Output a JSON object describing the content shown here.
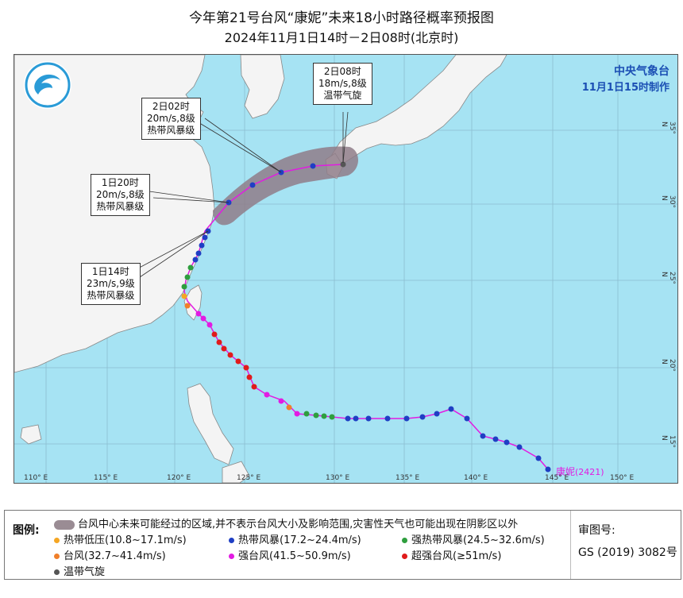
{
  "title": {
    "line1": "今年第21号台风“康妮”未来18小时路径概率预报图",
    "line2": "2024年11月1日14时－2日08时(北京时)"
  },
  "agency": {
    "name": "中央气象台",
    "made": "11月1日15时制作"
  },
  "typhoon": {
    "name": "康妮",
    "code": "(2421)"
  },
  "callouts": [
    {
      "time": "2日08时",
      "wind": "18m/s,8级",
      "type": "温带气旋"
    },
    {
      "time": "2日02时",
      "wind": "20m/s,8级",
      "type": "热带风暴级"
    },
    {
      "time": "1日20时",
      "wind": "20m/s,8级",
      "type": "热带风暴级"
    },
    {
      "time": "1日14时",
      "wind": "23m/s,9级",
      "type": "热带风暴级"
    }
  ],
  "lon_ticks": [
    "110° E",
    "115° E",
    "120° E",
    "125° E",
    "130° E",
    "135° E",
    "140° E",
    "145° E",
    "150° E"
  ],
  "lat_ticks": [
    "35° N",
    "30° N",
    "25° N",
    "20° N",
    "15° N"
  ],
  "legend": {
    "label": "图例:",
    "area": "台风中心未来可能经过的区域,并不表示台风大小及影响范围,灾害性天气也可能出现在阴影区以外",
    "items": [
      {
        "label": "热带低压(10.8~17.1m/s)",
        "color": "#f5a623"
      },
      {
        "label": "热带风暴(17.2~24.4m/s)",
        "color": "#1f3fc4"
      },
      {
        "label": "强热带风暴(24.5~32.6m/s)",
        "color": "#2e9e3e"
      },
      {
        "label": "台风(32.7~41.4m/s)",
        "color": "#f07f2a"
      },
      {
        "label": "强台风(41.5~50.9m/s)",
        "color": "#e21be2"
      },
      {
        "label": "超强台风(≥51m/s)",
        "color": "#e01b1b"
      },
      {
        "label": "温带气旋",
        "color": "#555555"
      }
    ],
    "review_label": "审图号:",
    "review_no": "GS (2019) 3082号"
  },
  "colors": {
    "sea": "#a6e3f3",
    "land": "#f4f4f4",
    "forecast_area": "#8f7c88",
    "track_forecast": "#e21be2"
  }
}
